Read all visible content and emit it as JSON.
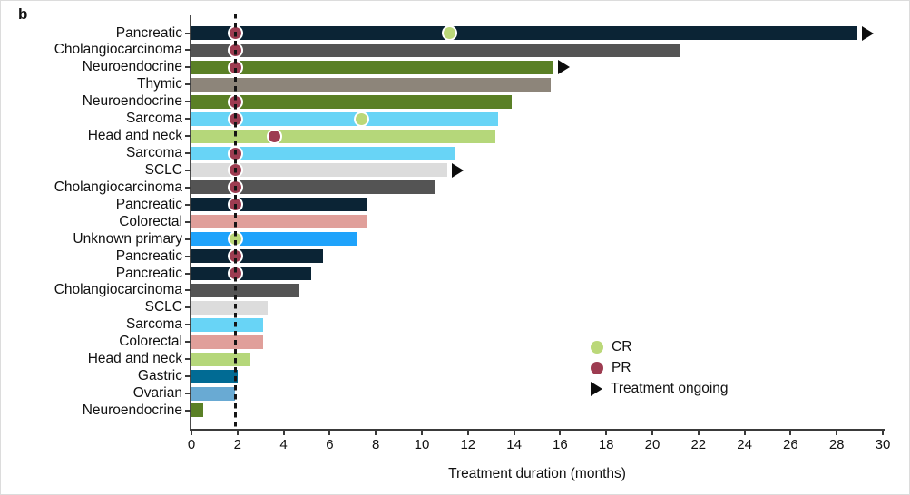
{
  "panel_label": "b",
  "legend": {
    "cr": "CR",
    "pr": "PR",
    "ongoing": "Treatment ongoing"
  },
  "colors": {
    "cr_marker": "#bbd879",
    "pr_marker": "#9d3c51",
    "ongoing_marker": "#0d0d0d",
    "axis": "#3a3a3a",
    "reference_line": "#151515"
  },
  "chart_data": {
    "type": "bar",
    "orientation": "horizontal",
    "title": "",
    "xlabel": "Treatment duration (months)",
    "ylabel": "",
    "xlim": [
      0,
      30
    ],
    "xticks": [
      0,
      2,
      4,
      6,
      8,
      10,
      12,
      14,
      16,
      18,
      20,
      22,
      24,
      26,
      28,
      30
    ],
    "reference_line_x": 1.9,
    "legend_position": "lower right",
    "grid": false,
    "bars": [
      {
        "label": "Pancreatic",
        "value": 28.9,
        "color": "#0b2435",
        "markers": [
          {
            "type": "PR",
            "x": 1.9
          },
          {
            "type": "CR",
            "x": 11.2
          }
        ],
        "ongoing": true
      },
      {
        "label": "Cholangiocarcinoma",
        "value": 21.2,
        "color": "#545454",
        "markers": [
          {
            "type": "PR",
            "x": 1.9
          }
        ],
        "ongoing": false
      },
      {
        "label": "Neuroendocrine",
        "value": 15.7,
        "color": "#5a8026",
        "markers": [
          {
            "type": "PR",
            "x": 1.9
          }
        ],
        "ongoing": true
      },
      {
        "label": "Thymic",
        "value": 15.6,
        "color": "#8d857a",
        "markers": [],
        "ongoing": false
      },
      {
        "label": "Neuroendocrine",
        "value": 13.9,
        "color": "#5a8026",
        "markers": [
          {
            "type": "PR",
            "x": 1.9
          }
        ],
        "ongoing": false
      },
      {
        "label": "Sarcoma",
        "value": 13.3,
        "color": "#68d4f6",
        "markers": [
          {
            "type": "PR",
            "x": 1.9
          },
          {
            "type": "CR",
            "x": 7.4
          }
        ],
        "ongoing": false
      },
      {
        "label": "Head and neck",
        "value": 13.2,
        "color": "#b5d77a",
        "markers": [
          {
            "type": "PR",
            "x": 3.6
          }
        ],
        "ongoing": false
      },
      {
        "label": "Sarcoma",
        "value": 11.4,
        "color": "#68d4f6",
        "markers": [
          {
            "type": "PR",
            "x": 1.9
          }
        ],
        "ongoing": false
      },
      {
        "label": "SCLC",
        "value": 11.1,
        "color": "#dcdcdc",
        "markers": [
          {
            "type": "PR",
            "x": 1.9
          }
        ],
        "ongoing": true
      },
      {
        "label": "Cholangiocarcinoma",
        "value": 10.6,
        "color": "#545454",
        "markers": [
          {
            "type": "PR",
            "x": 1.9
          }
        ],
        "ongoing": false
      },
      {
        "label": "Pancreatic",
        "value": 7.6,
        "color": "#0b2435",
        "markers": [
          {
            "type": "PR",
            "x": 1.9
          }
        ],
        "ongoing": false
      },
      {
        "label": "Colorectal",
        "value": 7.6,
        "color": "#e09f9a",
        "markers": [],
        "ongoing": false
      },
      {
        "label": "Unknown primary",
        "value": 7.2,
        "color": "#1fa3fb",
        "markers": [
          {
            "type": "CR",
            "x": 1.9
          }
        ],
        "ongoing": false
      },
      {
        "label": "Pancreatic",
        "value": 5.7,
        "color": "#0b2435",
        "markers": [
          {
            "type": "PR",
            "x": 1.9
          }
        ],
        "ongoing": false
      },
      {
        "label": "Pancreatic",
        "value": 5.2,
        "color": "#0b2435",
        "markers": [
          {
            "type": "PR",
            "x": 1.9
          }
        ],
        "ongoing": false
      },
      {
        "label": "Cholangiocarcinoma",
        "value": 4.7,
        "color": "#545454",
        "markers": [],
        "ongoing": false
      },
      {
        "label": "SCLC",
        "value": 3.3,
        "color": "#dcdcdc",
        "markers": [],
        "ongoing": false
      },
      {
        "label": "Sarcoma",
        "value": 3.1,
        "color": "#68d4f6",
        "markers": [],
        "ongoing": false
      },
      {
        "label": "Colorectal",
        "value": 3.1,
        "color": "#e09f9a",
        "markers": [],
        "ongoing": false
      },
      {
        "label": "Head and neck",
        "value": 2.5,
        "color": "#b5d77a",
        "markers": [],
        "ongoing": false
      },
      {
        "label": "Gastric",
        "value": 2.0,
        "color": "#016b94",
        "markers": [],
        "ongoing": false
      },
      {
        "label": "Ovarian",
        "value": 1.9,
        "color": "#69aad3",
        "markers": [],
        "ongoing": false
      },
      {
        "label": "Neuroendocrine",
        "value": 0.5,
        "color": "#5a8026",
        "markers": [],
        "ongoing": false
      }
    ]
  }
}
